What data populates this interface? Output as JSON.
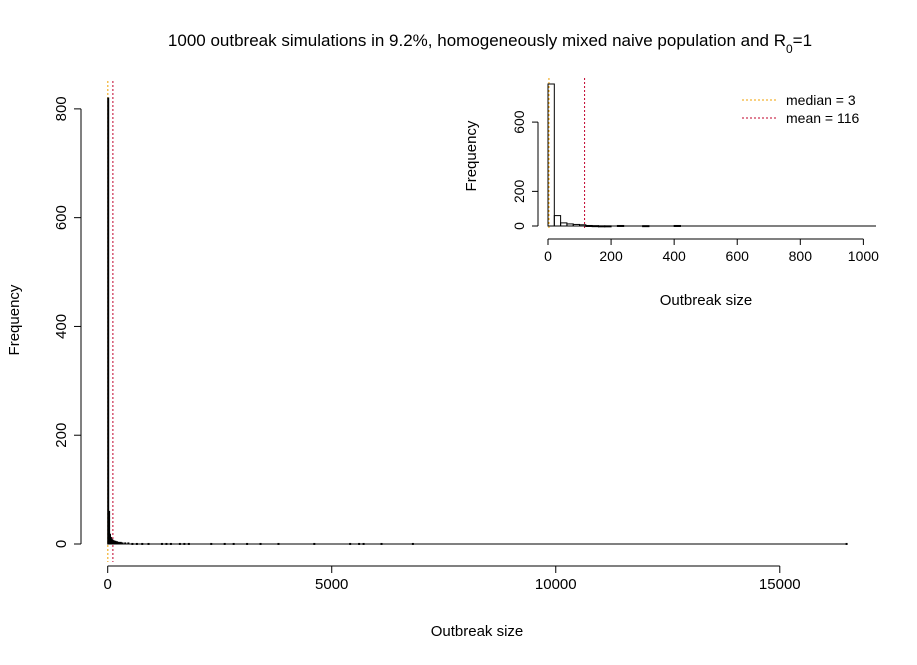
{
  "chart_data": [
    {
      "id": "main",
      "type": "bar",
      "title_main": "1000 outbreak simulations in 9.2%, homogeneously mixed naive population and R",
      "title_sub": "0",
      "title_tail": "=1",
      "xlabel": "Outbreak size",
      "ylabel": "Frequency",
      "xlim": [
        0,
        16500
      ],
      "ylim": [
        0,
        820
      ],
      "xticks": [
        0,
        5000,
        10000,
        15000
      ],
      "yticks": [
        0,
        200,
        400,
        600,
        800
      ],
      "bin_width": 20,
      "bins": [
        {
          "x": 0,
          "y": 820
        },
        {
          "x": 20,
          "y": 60
        },
        {
          "x": 40,
          "y": 18
        },
        {
          "x": 60,
          "y": 12
        },
        {
          "x": 80,
          "y": 9
        },
        {
          "x": 100,
          "y": 7
        },
        {
          "x": 120,
          "y": 6
        },
        {
          "x": 140,
          "y": 5
        },
        {
          "x": 160,
          "y": 5
        },
        {
          "x": 180,
          "y": 4
        },
        {
          "x": 200,
          "y": 4
        },
        {
          "x": 240,
          "y": 3
        },
        {
          "x": 280,
          "y": 3
        },
        {
          "x": 320,
          "y": 2
        },
        {
          "x": 380,
          "y": 2
        },
        {
          "x": 450,
          "y": 2
        },
        {
          "x": 540,
          "y": 1
        },
        {
          "x": 640,
          "y": 1
        },
        {
          "x": 760,
          "y": 1
        },
        {
          "x": 900,
          "y": 1
        },
        {
          "x": 1200,
          "y": 1
        },
        {
          "x": 1300,
          "y": 1
        },
        {
          "x": 1400,
          "y": 1
        },
        {
          "x": 1600,
          "y": 1
        },
        {
          "x": 1700,
          "y": 1
        },
        {
          "x": 1800,
          "y": 1
        },
        {
          "x": 2300,
          "y": 1
        },
        {
          "x": 2600,
          "y": 1
        },
        {
          "x": 2800,
          "y": 1
        },
        {
          "x": 3100,
          "y": 1
        },
        {
          "x": 3400,
          "y": 1
        },
        {
          "x": 3800,
          "y": 1
        },
        {
          "x": 4600,
          "y": 1
        },
        {
          "x": 5400,
          "y": 1
        },
        {
          "x": 5600,
          "y": 1
        },
        {
          "x": 5700,
          "y": 1
        },
        {
          "x": 6100,
          "y": 1
        },
        {
          "x": 6800,
          "y": 1
        },
        {
          "x": 16480,
          "y": 1
        }
      ],
      "median": 3,
      "mean": 116,
      "median_color": "#f0a000",
      "mean_color": "#c0002a"
    },
    {
      "id": "inset",
      "type": "bar",
      "xlabel": "Outbreak size",
      "ylabel": "Frequency",
      "xlim": [
        0,
        1040
      ],
      "ylim": [
        0,
        820
      ],
      "xticks": [
        0,
        200,
        400,
        600,
        800,
        1000
      ],
      "yticks": [
        0,
        200,
        600
      ],
      "bin_width": 20,
      "bins": [
        {
          "x": 0,
          "y": 820
        },
        {
          "x": 20,
          "y": 60
        },
        {
          "x": 40,
          "y": 18
        },
        {
          "x": 60,
          "y": 12
        },
        {
          "x": 80,
          "y": 9
        },
        {
          "x": 100,
          "y": 7
        },
        {
          "x": 120,
          "y": 3
        },
        {
          "x": 140,
          "y": 2
        },
        {
          "x": 160,
          "y": 1
        },
        {
          "x": 180,
          "y": 1
        },
        {
          "x": 220,
          "y": 3
        },
        {
          "x": 300,
          "y": 2
        },
        {
          "x": 400,
          "y": 3
        }
      ],
      "median": 3,
      "mean": 116,
      "legend_position": "top-right",
      "legend": [
        {
          "label": "median = 3",
          "color": "#f0a000"
        },
        {
          "label": "mean = 116",
          "color": "#c0002a"
        }
      ]
    }
  ]
}
